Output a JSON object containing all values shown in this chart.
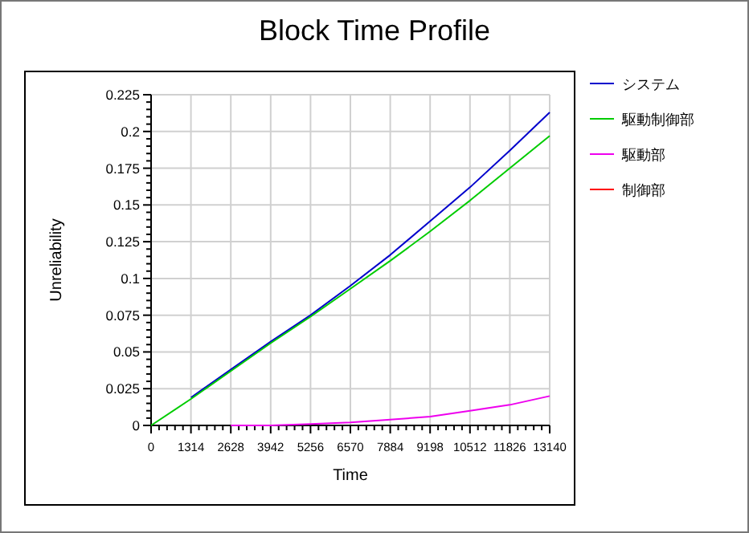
{
  "chart_data": {
    "type": "line",
    "title": "Block Time Profile",
    "xlabel": "Time",
    "ylabel": "Unreliability",
    "x": [
      0,
      1314,
      2628,
      3942,
      5256,
      6570,
      7884,
      9198,
      10512,
      11826,
      13140
    ],
    "series": [
      {
        "name": "システム",
        "color": "#0000cc",
        "values": [
          null,
          0.019,
          0.038,
          0.057,
          0.075,
          0.095,
          0.116,
          0.139,
          0.162,
          0.187,
          0.213
        ]
      },
      {
        "name": "駆動制御部",
        "color": "#00cc00",
        "values": [
          0,
          0.018,
          0.037,
          0.056,
          0.074,
          0.093,
          0.112,
          0.132,
          0.153,
          0.175,
          0.197
        ]
      },
      {
        "name": "駆動部",
        "color": "#ee00ee",
        "values": [
          null,
          null,
          0,
          0,
          0.001,
          0.002,
          0.004,
          0.006,
          0.01,
          0.014,
          0.02
        ]
      },
      {
        "name": "制御部",
        "color": "#ff0000",
        "values": [
          null,
          null,
          null,
          null,
          null,
          null,
          null,
          null,
          null,
          null,
          null
        ]
      }
    ],
    "xlim": [
      0,
      13140
    ],
    "xticks": [
      0,
      1314,
      2628,
      3942,
      5256,
      6570,
      7884,
      9198,
      10512,
      11826,
      13140
    ],
    "ylim": [
      0,
      0.225
    ],
    "yticks": [
      0,
      0.025,
      0.05,
      0.075,
      0.1,
      0.125,
      0.15,
      0.175,
      0.2,
      0.225
    ],
    "grid": true,
    "legend": "right",
    "marker": "none",
    "line_style": "solid"
  }
}
